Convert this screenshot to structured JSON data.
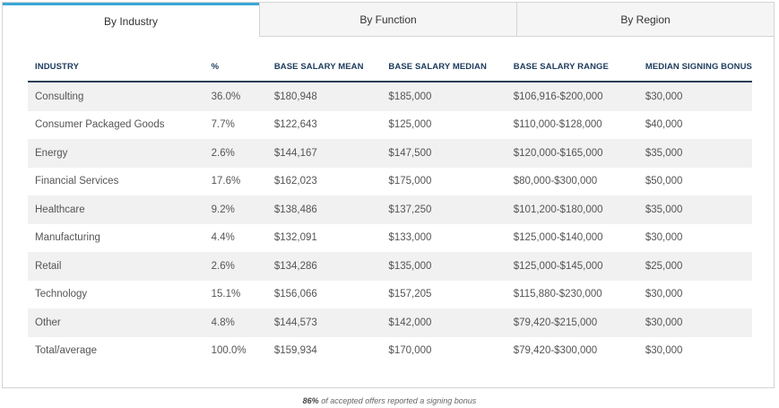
{
  "tabs": [
    {
      "label": "By Industry",
      "active": true
    },
    {
      "label": "By Function",
      "active": false
    },
    {
      "label": "By Region",
      "active": false
    }
  ],
  "table": {
    "headers": [
      "INDUSTRY",
      "%",
      "BASE SALARY MEAN",
      "BASE SALARY MEDIAN",
      "BASE SALARY RANGE",
      "MEDIAN SIGNING BONUS"
    ],
    "rows": [
      [
        "Consulting",
        "36.0%",
        "$180,948",
        "$185,000",
        "$106,916-$200,000",
        "$30,000"
      ],
      [
        "Consumer Packaged Goods",
        "7.7%",
        "$122,643",
        "$125,000",
        "$110,000-$128,000",
        "$40,000"
      ],
      [
        "Energy",
        "2.6%",
        "$144,167",
        "$147,500",
        "$120,000-$165,000",
        "$35,000"
      ],
      [
        "Financial Services",
        "17.6%",
        "$162,023",
        "$175,000",
        "$80,000-$300,000",
        "$50,000"
      ],
      [
        "Healthcare",
        "9.2%",
        "$138,486",
        "$137,250",
        "$101,200-$180,000",
        "$35,000"
      ],
      [
        "Manufacturing",
        "4.4%",
        "$132,091",
        "$133,000",
        "$125,000-$140,000",
        "$30,000"
      ],
      [
        "Retail",
        "2.6%",
        "$134,286",
        "$135,000",
        "$125,000-$145,000",
        "$25,000"
      ],
      [
        "Technology",
        "15.1%",
        "$156,066",
        "$157,205",
        "$115,880-$230,000",
        "$30,000"
      ],
      [
        "Other",
        "4.8%",
        "$144,573",
        "$142,000",
        "$79,420-$215,000",
        "$30,000"
      ],
      [
        "Total/average",
        "100.0%",
        "$159,934",
        "$170,000",
        "$79,420-$300,000",
        "$30,000"
      ]
    ]
  },
  "footnote": {
    "strong": "86%",
    "text": " of accepted offers reported a signing bonus"
  },
  "colors": {
    "accent": "#3aa7d9",
    "header_text": "#1b3a5c",
    "row_stripe": "#f1f1f1"
  }
}
